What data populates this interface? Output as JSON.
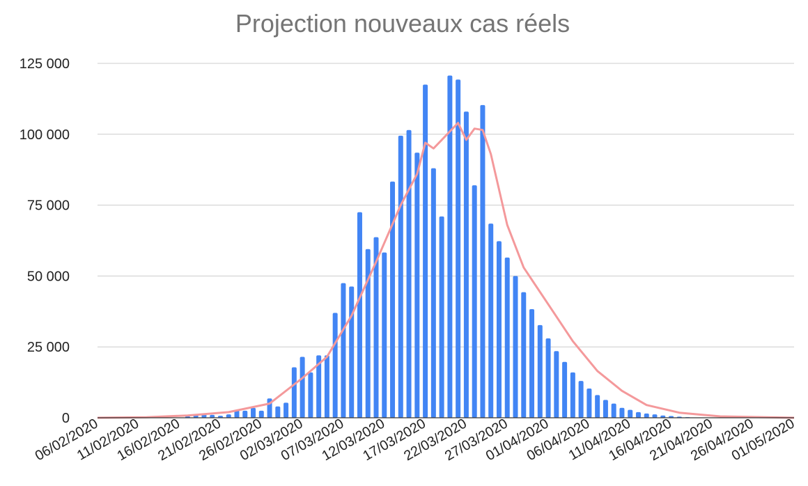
{
  "chart_data": {
    "type": "bar",
    "title": "Projection nouveaux cas réels",
    "xlabel": "",
    "ylabel": "",
    "ylim": [
      0,
      125000
    ],
    "yticks": [
      0,
      25000,
      50000,
      75000,
      100000,
      125000
    ],
    "ytick_labels": [
      "0",
      "25 000",
      "50 000",
      "75 000",
      "100 000",
      "125 000"
    ],
    "xrange": [
      "06/02/2020",
      "01/05/2020"
    ],
    "xtick_labels": [
      "06/02/2020",
      "11/02/2020",
      "16/02/2020",
      "21/02/2020",
      "26/02/2020",
      "02/03/2020",
      "07/03/2020",
      "12/03/2020",
      "17/03/2020",
      "22/03/2020",
      "27/03/2020",
      "01/04/2020",
      "06/04/2020",
      "11/04/2020",
      "16/04/2020",
      "21/04/2020",
      "26/04/2020",
      "01/05/2020"
    ],
    "grid": true,
    "colors": {
      "bars": "#4285f4",
      "line": "#f4999b",
      "grid": "#cccccc",
      "title": "#757575"
    },
    "series": [
      {
        "type": "bar",
        "x": [
          "08/02/2020",
          "09/02/2020",
          "10/02/2020",
          "11/02/2020",
          "12/02/2020",
          "13/02/2020",
          "14/02/2020",
          "15/02/2020",
          "16/02/2020",
          "17/02/2020",
          "18/02/2020",
          "19/02/2020",
          "20/02/2020",
          "21/02/2020",
          "22/02/2020",
          "23/02/2020",
          "24/02/2020",
          "25/02/2020",
          "26/02/2020",
          "27/02/2020",
          "28/02/2020",
          "29/02/2020",
          "01/03/2020",
          "02/03/2020",
          "03/03/2020",
          "04/03/2020",
          "05/03/2020",
          "06/03/2020",
          "07/03/2020",
          "08/03/2020",
          "09/03/2020",
          "10/03/2020",
          "11/03/2020",
          "12/03/2020",
          "13/03/2020",
          "14/03/2020",
          "15/03/2020",
          "16/03/2020",
          "17/03/2020",
          "18/03/2020",
          "19/03/2020",
          "20/03/2020",
          "21/03/2020",
          "22/03/2020",
          "23/03/2020",
          "24/03/2020",
          "25/03/2020",
          "26/03/2020",
          "27/03/2020",
          "28/03/2020",
          "29/03/2020",
          "30/03/2020",
          "31/03/2020",
          "01/04/2020",
          "02/04/2020",
          "03/04/2020",
          "04/04/2020",
          "05/04/2020",
          "06/04/2020",
          "07/04/2020",
          "08/04/2020",
          "09/04/2020",
          "10/04/2020",
          "11/04/2020",
          "12/04/2020",
          "13/04/2020",
          "14/04/2020",
          "15/04/2020",
          "16/04/2020",
          "17/04/2020",
          "18/04/2020",
          "19/04/2020",
          "20/04/2020",
          "21/04/2020",
          "22/04/2020",
          "23/04/2020",
          "24/04/2020",
          "25/04/2020",
          "26/04/2020",
          "27/04/2020",
          "28/04/2020",
          "29/04/2020",
          "30/04/2020"
        ],
        "values": [
          0,
          0,
          0,
          0,
          0,
          0,
          0,
          0,
          0,
          500,
          1000,
          1500,
          1000,
          700,
          1200,
          2700,
          2500,
          3500,
          2500,
          6800,
          4000,
          5300,
          17800,
          21500,
          16000,
          22000,
          22000,
          37000,
          47500,
          46300,
          72500,
          59500,
          63700,
          58300,
          83300,
          99500,
          101500,
          93500,
          117500,
          88000,
          71000,
          120700,
          119300,
          108000,
          82000,
          110300,
          68500,
          62300,
          56500,
          50000,
          44300,
          38300,
          32700,
          28000,
          23500,
          19700,
          16000,
          13000,
          10300,
          8000,
          6300,
          5000,
          3500,
          2800,
          2000,
          1500,
          1200,
          800,
          600,
          400,
          200,
          100,
          0,
          0,
          0,
          0,
          0,
          0,
          0,
          0,
          0,
          0,
          0
        ]
      },
      {
        "type": "line",
        "x": [
          "06/02/2020",
          "12/02/2020",
          "17/02/2020",
          "22/02/2020",
          "27/02/2020",
          "02/03/2020",
          "05/03/2020",
          "08/03/2020",
          "11/03/2020",
          "14/03/2020",
          "16/03/2020",
          "17/03/2020",
          "18/03/2020",
          "20/03/2020",
          "21/03/2020",
          "22/03/2020",
          "23/03/2020",
          "24/03/2020",
          "25/03/2020",
          "27/03/2020",
          "29/03/2020",
          "01/04/2020",
          "04/04/2020",
          "07/04/2020",
          "10/04/2020",
          "13/04/2020",
          "17/04/2020",
          "22/04/2020",
          "01/05/2020"
        ],
        "values": [
          0,
          200,
          800,
          2000,
          5000,
          14000,
          21500,
          36000,
          55000,
          75000,
          86000,
          97000,
          95000,
          101000,
          104000,
          98000,
          102000,
          101500,
          93000,
          68000,
          53000,
          40000,
          27000,
          16500,
          9500,
          4500,
          1800,
          500,
          0
        ]
      }
    ]
  }
}
